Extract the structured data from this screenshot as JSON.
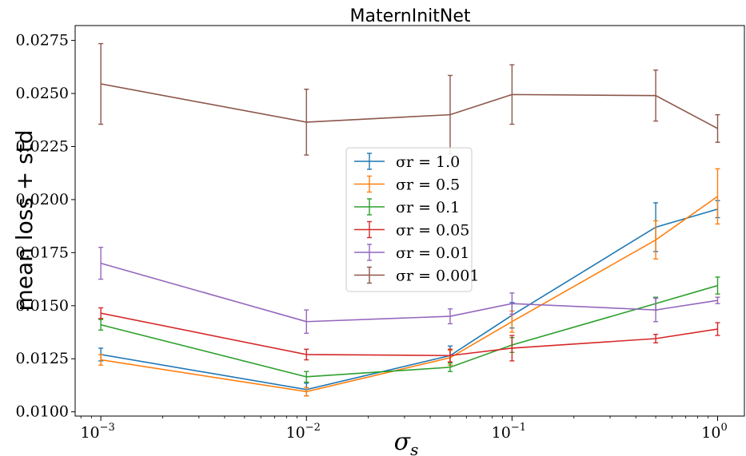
{
  "chart_data": {
    "type": "line",
    "title": "MaternInitNet",
    "xlabel": "σ_s",
    "ylabel": "mean loss + std",
    "xscale": "log",
    "x": [
      0.001,
      0.01,
      0.05,
      0.1,
      0.5,
      1.0
    ],
    "xtick_labels": [
      {
        "base": "10",
        "exp": "−3"
      },
      {
        "base": "10",
        "exp": "−2"
      },
      {
        "base": "10",
        "exp": "−1"
      },
      {
        "base": "10",
        "exp": "0"
      }
    ],
    "xlim": [
      0.00075,
      1.35
    ],
    "ylim": [
      0.0098,
      0.0282
    ],
    "yticks": [
      "0.0100",
      "0.0125",
      "0.0150",
      "0.0175",
      "0.0200",
      "0.0225",
      "0.0250",
      "0.0275"
    ],
    "legend_position": "center",
    "series": [
      {
        "name": "σ_r = 1.0",
        "legend_label": "σr = 1.0",
        "color": "#1f77b4",
        "values": [
          0.0127,
          0.01105,
          0.01265,
          0.01455,
          0.0187,
          0.01955
        ],
        "errors": [
          0.0003,
          0.0003,
          0.00045,
          0.0006,
          0.00115,
          0.0004
        ]
      },
      {
        "name": "σ_r = 0.5",
        "legend_label": "σr = 0.5",
        "color": "#ff7f0e",
        "values": [
          0.01245,
          0.01095,
          0.01255,
          0.01425,
          0.0181,
          0.02015
        ],
        "errors": [
          0.00025,
          0.0002,
          0.00035,
          0.0005,
          0.0009,
          0.0013
        ]
      },
      {
        "name": "σ_r = 0.1",
        "legend_label": "σr = 0.1",
        "color": "#2ca02c",
        "values": [
          0.0141,
          0.01165,
          0.0121,
          0.01315,
          0.0151,
          0.01595
        ],
        "errors": [
          0.00025,
          0.00025,
          0.0002,
          0.00035,
          0.0003,
          0.0004
        ]
      },
      {
        "name": "σ_r = 0.05",
        "legend_label": "σr = 0.05",
        "color": "#d62728",
        "values": [
          0.01465,
          0.0127,
          0.01265,
          0.013,
          0.01345,
          0.0139
        ],
        "errors": [
          0.00025,
          0.00025,
          0.0003,
          0.0006,
          0.0002,
          0.0003
        ]
      },
      {
        "name": "σ_r = 0.01",
        "legend_label": "σr = 0.01",
        "color": "#9467bd",
        "values": [
          0.017,
          0.01425,
          0.0145,
          0.0151,
          0.0148,
          0.01525
        ],
        "errors": [
          0.00075,
          0.00055,
          0.00035,
          0.0005,
          0.00055,
          0.00015
        ]
      },
      {
        "name": "σ_r = 0.001",
        "legend_label": "σr = 0.001",
        "color": "#8c564b",
        "values": [
          0.02545,
          0.02365,
          0.024,
          0.02495,
          0.0249,
          0.02335
        ],
        "errors": [
          0.0019,
          0.00155,
          0.00185,
          0.0014,
          0.0012,
          0.00065
        ]
      }
    ]
  }
}
